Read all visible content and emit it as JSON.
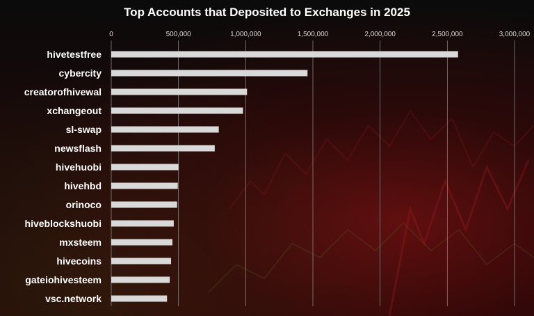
{
  "chart_data": {
    "type": "bar",
    "orientation": "horizontal",
    "title": "Top Accounts that Deposited to Exchanges in 2025",
    "xlabel": "",
    "ylabel": "",
    "xlim": [
      0,
      3000000
    ],
    "ticks": [
      0,
      500000,
      1000000,
      1500000,
      2000000,
      2500000,
      3000000
    ],
    "tick_labels": [
      "0",
      "500,000",
      "1,000,000",
      "1,500,000",
      "2,000,000",
      "2,500,000",
      "3,000,000"
    ],
    "grid": true,
    "axis_position": "top",
    "categories": [
      "hivetestfree",
      "cybercity",
      "creatorofhivewal",
      "xchangeout",
      "sl-swap",
      "newsflash",
      "hivehuobi",
      "hivehbd",
      "orinoco",
      "hiveblockshuobi",
      "mxsteem",
      "hivecoins",
      "gateiohivesteem",
      "vsc.network"
    ],
    "values": [
      2580000,
      1460000,
      1010000,
      980000,
      800000,
      770000,
      500000,
      495000,
      490000,
      465000,
      455000,
      445000,
      435000,
      415000
    ],
    "colors": {
      "bar": "#d9d9d9",
      "background": "#0b0b0b"
    }
  }
}
